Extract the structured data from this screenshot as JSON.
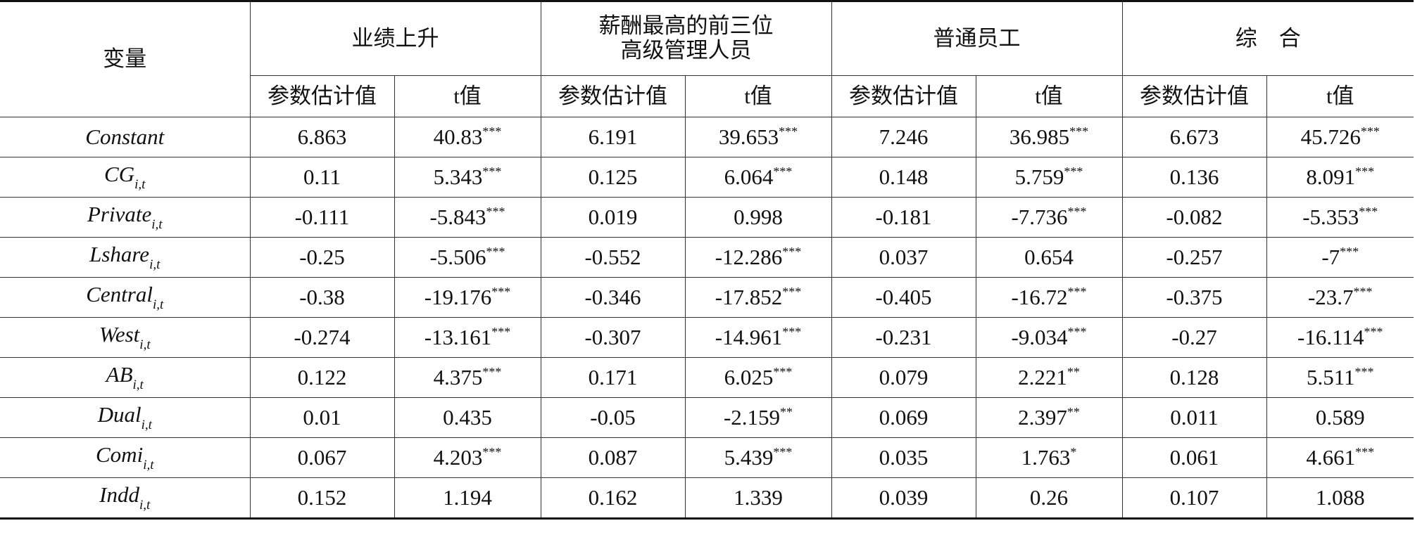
{
  "table": {
    "header": {
      "variable": "变量",
      "groups": [
        "业绩上升",
        "薪酬最高的前三位\n高级管理人员",
        "普通员工",
        "综　合"
      ]
    },
    "subheader": [
      "参数估计值",
      "t值"
    ],
    "rows": [
      {
        "name": "Constant",
        "cells": [
          "6.863",
          {
            "value": "40.83",
            "stars": "***"
          },
          "6.191",
          {
            "value": "39.653",
            "stars": "***"
          },
          "7.246",
          {
            "value": "36.985",
            "stars": "***"
          },
          "6.673",
          {
            "value": "45.726",
            "stars": "***"
          }
        ]
      },
      {
        "name": "CG",
        "sub": "i,t",
        "cells": [
          "0.11",
          {
            "value": "5.343",
            "stars": "***"
          },
          "0.125",
          {
            "value": "6.064",
            "stars": "***"
          },
          "0.148",
          {
            "value": "5.759",
            "stars": "***"
          },
          "0.136",
          {
            "value": "8.091",
            "stars": "***"
          }
        ]
      },
      {
        "name": "Private",
        "sub": "i,t",
        "cells": [
          "-0.111",
          {
            "value": "-5.843",
            "stars": "***"
          },
          "0.019",
          "0.998",
          "-0.181",
          {
            "value": "-7.736",
            "stars": "***"
          },
          "-0.082",
          {
            "value": "-5.353",
            "stars": "***"
          }
        ]
      },
      {
        "name": "Lshare",
        "sub": "i,t",
        "cells": [
          "-0.25",
          {
            "value": "-5.506",
            "stars": "***"
          },
          "-0.552",
          {
            "value": "-12.286",
            "stars": "***"
          },
          "0.037",
          "0.654",
          "-0.257",
          {
            "value": "-7",
            "stars": "***"
          }
        ]
      },
      {
        "name": "Central",
        "sub": "i,t",
        "cells": [
          "-0.38",
          {
            "value": "-19.176",
            "stars": "***"
          },
          "-0.346",
          {
            "value": "-17.852",
            "stars": "***"
          },
          "-0.405",
          {
            "value": "-16.72",
            "stars": "***"
          },
          "-0.375",
          {
            "value": "-23.7",
            "stars": "***"
          }
        ]
      },
      {
        "name": "West",
        "sub": "i,t",
        "cells": [
          "-0.274",
          {
            "value": "-13.161",
            "stars": "***"
          },
          "-0.307",
          {
            "value": "-14.961",
            "stars": "***"
          },
          "-0.231",
          {
            "value": "-9.034",
            "stars": "***"
          },
          "-0.27",
          {
            "value": "-16.114",
            "stars": "***"
          }
        ]
      },
      {
        "name": "AB",
        "sub": "i,t",
        "cells": [
          "0.122",
          {
            "value": "4.375",
            "stars": "***"
          },
          "0.171",
          {
            "value": "6.025",
            "stars": "***"
          },
          "0.079",
          {
            "value": "2.221",
            "stars": "**"
          },
          "0.128",
          {
            "value": "5.511",
            "stars": "***"
          }
        ]
      },
      {
        "name": "Dual",
        "sub": "i,t",
        "cells": [
          "0.01",
          "0.435",
          "-0.05",
          {
            "value": "-2.159",
            "stars": "**"
          },
          "0.069",
          {
            "value": "2.397",
            "stars": "**"
          },
          "0.011",
          "0.589"
        ]
      },
      {
        "name": "Comi",
        "sub": "i,t",
        "cells": [
          "0.067",
          {
            "value": "4.203",
            "stars": "***"
          },
          "0.087",
          {
            "value": "5.439",
            "stars": "***"
          },
          "0.035",
          {
            "value": "1.763",
            "stars": "*"
          },
          "0.061",
          {
            "value": "4.661",
            "stars": "***"
          }
        ]
      },
      {
        "name": "Indd",
        "sub": "i,t",
        "cells": [
          "0.152",
          "1.194",
          "0.162",
          "1.339",
          "0.039",
          "0.26",
          "0.107",
          "1.088"
        ]
      }
    ]
  }
}
